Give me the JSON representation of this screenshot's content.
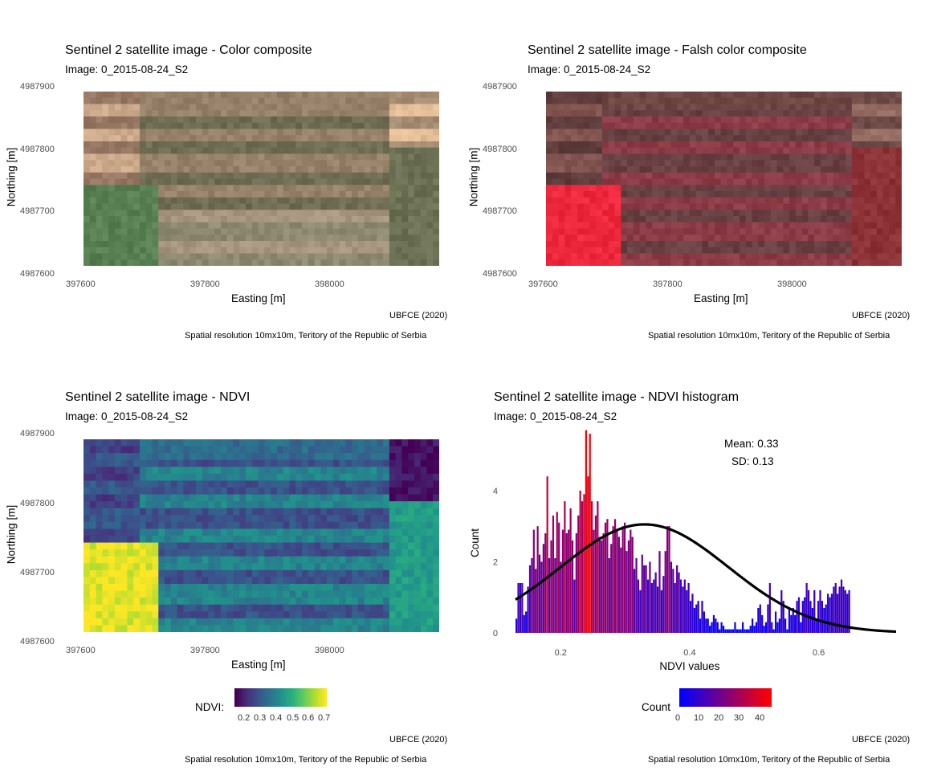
{
  "panels": {
    "color": {
      "title": "Sentinel 2 satellite image - Color composite",
      "subtitle": "Image:  0_2015-08-24_S2",
      "xlabel": "Easting [m]",
      "ylabel": "Northing [m]",
      "xticks": [
        "397600",
        "397800",
        "398000"
      ],
      "yticks": [
        "4987900",
        "4987800",
        "4987700",
        "4987600"
      ],
      "caption1": "UBFCE (2020)",
      "caption2": "Spatial resolution 10mx10m, Teritory of the Republic of Serbia"
    },
    "falsecolor": {
      "title": "Sentinel 2 satellite image - Falsh color composite",
      "subtitle": "Image:  0_2015-08-24_S2",
      "xlabel": "Easting [m]",
      "ylabel": "Northing [m]",
      "xticks": [
        "397600",
        "397800",
        "398000"
      ],
      "yticks": [
        "4987900",
        "4987800",
        "4987700",
        "4987600"
      ],
      "caption1": "UBFCE (2020)",
      "caption2": "Spatial resolution 10mx10m, Teritory of the Republic of Serbia"
    },
    "ndvi": {
      "title": "Sentinel 2 satellite image - NDVI",
      "subtitle": "Image:  0_2015-08-24_S2",
      "xlabel": "Easting [m]",
      "ylabel": "Northing [m]",
      "xticks": [
        "397600",
        "397800",
        "398000"
      ],
      "yticks": [
        "4987900",
        "4987800",
        "4987700",
        "4987600"
      ],
      "legend_title": "NDVI:",
      "legend_ticks": [
        "0.2",
        "0.3",
        "0.4",
        "0.5",
        "0.6",
        "0.7"
      ],
      "caption1": "UBFCE (2020)",
      "caption2": "Spatial resolution 10mx10m, Teritory of the Republic of Serbia"
    },
    "hist": {
      "title": "Sentinel 2 satellite image - NDVI histogram",
      "subtitle": "Image:  0_2015-08-24_S2",
      "annot_mean": "Mean: 0.33",
      "annot_sd": "SD: 0.13",
      "legend_title": "Count",
      "legend_ticks": [
        "0",
        "10",
        "20",
        "30",
        "40"
      ],
      "caption1": "UBFCE (2020)",
      "caption2": "Spatial resolution 10mx10m, Teritory of the Republic of Serbia"
    }
  },
  "colors": {
    "viridis_low": "#440154",
    "viridis_high": "#fde725",
    "count_low": "#0000ff",
    "count_high": "#ff0000",
    "curve": "#000000"
  },
  "chart_data": {
    "type": "bar",
    "title": "Sentinel 2 satellite image - NDVI histogram",
    "xlabel": "NDVI values",
    "ylabel": "Count",
    "xlim": [
      0.12,
      0.73
    ],
    "ylim": [
      0,
      5.6
    ],
    "xticks": [
      "0.2",
      "0.4",
      "0.6"
    ],
    "yticks": [
      "0",
      "2",
      "4"
    ],
    "grid": false,
    "legend": "bottom",
    "x_start": 0.13,
    "bin_width": 0.005,
    "values": [
      0.4,
      1.4,
      1.4,
      1.4,
      0.5,
      0.6,
      1.3,
      1.9,
      2.1,
      2.9,
      1.8,
      3.0,
      2.2,
      2.0,
      2.5,
      2.8,
      4.4,
      2.1,
      2.6,
      3.3,
      2.1,
      3.4,
      3.1,
      2.0,
      2.9,
      3.7,
      2.8,
      2.9,
      3.5,
      2.6,
      1.5,
      2.8,
      3.3,
      4.0,
      3.7,
      3.9,
      5.7,
      4.4,
      5.6,
      3.7,
      2.9,
      3.3,
      3.7,
      2.7,
      2.6,
      2.8,
      3.1,
      3.2,
      2.1,
      2.5,
      3.0,
      3.2,
      2.9,
      2.7,
      2.4,
      3.0,
      3.1,
      2.3,
      2.6,
      2.9,
      2.7,
      1.8,
      2.1,
      1.5,
      1.2,
      2.2,
      1.9,
      1.9,
      1.5,
      2.0,
      1.4,
      1.5,
      1.7,
      1.3,
      2.3,
      1.2,
      1.6,
      2.3,
      3.0,
      3.0,
      2.0,
      1.8,
      1.4,
      1.9,
      1.7,
      1.5,
      1.3,
      1.5,
      1.2,
      1.4,
      0.9,
      1.1,
      0.7,
      0.8,
      0.9,
      0.4,
      0.9,
      0.6,
      0.4,
      0.4,
      0.2,
      0.3,
      0.5,
      0.4,
      0.3,
      0.1,
      0.3,
      0.2,
      0.1,
      0.1,
      0.1,
      0.1,
      0.1,
      0.3,
      0.1,
      0.1,
      0.1,
      0.3,
      0.1,
      0.1,
      0.1,
      0.2,
      0.4,
      0.2,
      0.3,
      0.7,
      0.8,
      0.5,
      0.2,
      0.3,
      0.8,
      1.4,
      0.3,
      0.1,
      0.6,
      0.3,
      0.4,
      1.2,
      0.9,
      0.4,
      0.1,
      0.7,
      0.5,
      0.7,
      0.5,
      0.9,
      1.0,
      0.3,
      0.9,
      1.0,
      1.4,
      1.2,
      0.9,
      0.7,
      1.2,
      0.4,
      0.9,
      1.2,
      0.9,
      0.7,
      0.8,
      1.1,
      1.0,
      1.1,
      1.3,
      1.4,
      1.1,
      1.3,
      1.5,
      1.3,
      1.2,
      1.1,
      1.2
    ],
    "curve": {
      "type": "normal",
      "mean": 0.33,
      "sd": 0.13,
      "peak": 3.05
    }
  }
}
